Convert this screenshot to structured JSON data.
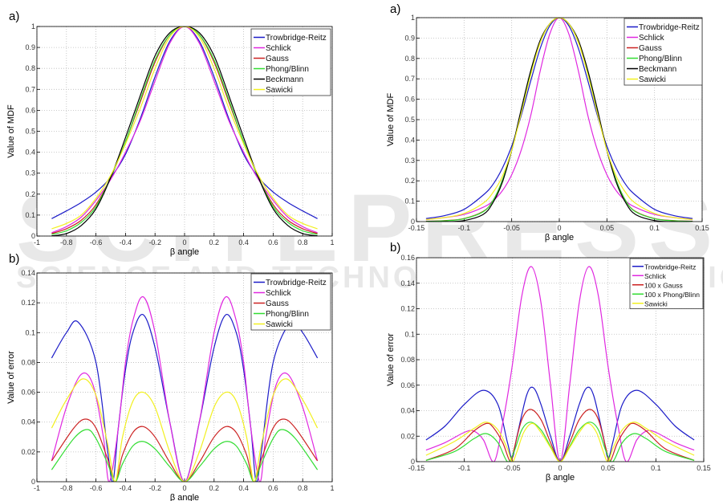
{
  "watermark": {
    "main": "SCITEPRESS",
    "sub": "SCIENCE AND TECHNOLOGY PUBLICATIONS"
  },
  "colors": {
    "Trowbridge-Reitz": "#1c1cc8",
    "Schlick": "#e028e0",
    "Gauss": "#cc2222",
    "Phong/Blinn": "#33dd33",
    "Beckmann": "#000000",
    "Sawicki": "#f2f020"
  },
  "chart_data": [
    {
      "id": "left-a",
      "panel_label": "a)",
      "type": "line",
      "xlabel": "β  angle",
      "ylabel": "Value of MDF",
      "xlim": [
        -1,
        1
      ],
      "ylim": [
        0,
        1
      ],
      "xticks": [
        "-1",
        "-0.8",
        "-0.6",
        "-0.4",
        "-0.2",
        "0",
        "0.2",
        "0.4",
        "0.6",
        "0.8",
        "1"
      ],
      "yticks": [
        "0",
        "0.1",
        "0.2",
        "0.3",
        "0.4",
        "0.5",
        "0.6",
        "0.7",
        "0.8",
        "0.9",
        "1"
      ],
      "grid": true,
      "legend": "top-right",
      "symmetric_about_zero": true,
      "series": [
        {
          "name": "Trowbridge-Reitz",
          "x": [
            0,
            0.1,
            0.2,
            0.3,
            0.4,
            0.5,
            0.6,
            0.7,
            0.8,
            0.9
          ],
          "y": [
            1,
            0.93,
            0.76,
            0.56,
            0.39,
            0.28,
            0.21,
            0.16,
            0.12,
            0.083
          ]
        },
        {
          "name": "Schlick",
          "x": [
            0,
            0.1,
            0.2,
            0.3,
            0.4,
            0.5,
            0.6,
            0.7,
            0.8,
            0.9
          ],
          "y": [
            1,
            0.92,
            0.74,
            0.55,
            0.4,
            0.27,
            0.17,
            0.09,
            0.045,
            0.016
          ]
        },
        {
          "name": "Gauss",
          "x": [
            0,
            0.1,
            0.2,
            0.3,
            0.4,
            0.5,
            0.6,
            0.7,
            0.8,
            0.9
          ],
          "y": [
            1,
            0.96,
            0.83,
            0.64,
            0.45,
            0.28,
            0.15,
            0.075,
            0.035,
            0.012
          ]
        },
        {
          "name": "Phong/Blinn",
          "x": [
            0,
            0.1,
            0.2,
            0.3,
            0.4,
            0.5,
            0.6,
            0.7,
            0.8,
            0.9
          ],
          "y": [
            1,
            0.96,
            0.84,
            0.65,
            0.45,
            0.28,
            0.14,
            0.065,
            0.025,
            0.008
          ]
        },
        {
          "name": "Beckmann",
          "x": [
            0,
            0.1,
            0.2,
            0.3,
            0.4,
            0.5,
            0.6,
            0.7,
            0.8,
            0.9
          ],
          "y": [
            1,
            0.97,
            0.86,
            0.67,
            0.47,
            0.28,
            0.13,
            0.05,
            0.012,
            0.001
          ]
        },
        {
          "name": "Sawicki",
          "x": [
            0,
            0.1,
            0.2,
            0.3,
            0.4,
            0.5,
            0.6,
            0.7,
            0.8,
            0.9
          ],
          "y": [
            1,
            0.95,
            0.8,
            0.61,
            0.44,
            0.29,
            0.18,
            0.1,
            0.06,
            0.035
          ]
        }
      ]
    },
    {
      "id": "left-b",
      "panel_label": "b)",
      "type": "line",
      "xlabel": "β  angle",
      "ylabel": "Value of error",
      "xlim": [
        -1,
        1
      ],
      "ylim": [
        0,
        0.14
      ],
      "xticks": [
        "-1",
        "-0.8",
        "-0.6",
        "-0.4",
        "-0.2",
        "0",
        "0.2",
        "0.4",
        "0.6",
        "0.8",
        "1"
      ],
      "yticks": [
        "0",
        "0.02",
        "0.04",
        "0.06",
        "0.08",
        "0.1",
        "0.12",
        "0.14"
      ],
      "grid": true,
      "legend": "top-right",
      "symmetric_about_zero": true,
      "series": [
        {
          "name": "Trowbridge-Reitz",
          "x": [
            0,
            0.1,
            0.2,
            0.28,
            0.35,
            0.4,
            0.45,
            0.485,
            0.52,
            0.6,
            0.72,
            0.8,
            0.9
          ],
          "y": [
            0,
            0.04,
            0.09,
            0.112,
            0.1,
            0.075,
            0.035,
            0,
            0.02,
            0.08,
            0.107,
            0.1,
            0.083
          ]
        },
        {
          "name": "Schlick",
          "x": [
            0,
            0.1,
            0.2,
            0.28,
            0.35,
            0.4,
            0.45,
            0.51,
            0.55,
            0.62,
            0.7,
            0.8,
            0.9
          ],
          "y": [
            0,
            0.04,
            0.1,
            0.124,
            0.108,
            0.08,
            0.035,
            0,
            0.03,
            0.065,
            0.072,
            0.05,
            0.014
          ]
        },
        {
          "name": "Gauss",
          "x": [
            0,
            0.1,
            0.2,
            0.28,
            0.35,
            0.42,
            0.47,
            0.52,
            0.6,
            0.67,
            0.75,
            0.9
          ],
          "y": [
            0,
            0.013,
            0.03,
            0.037,
            0.033,
            0.018,
            0,
            0.015,
            0.036,
            0.042,
            0.036,
            0.014
          ]
        },
        {
          "name": "Phong/Blinn",
          "x": [
            0,
            0.1,
            0.2,
            0.28,
            0.35,
            0.42,
            0.47,
            0.52,
            0.6,
            0.66,
            0.75,
            0.9
          ],
          "y": [
            0,
            0.01,
            0.022,
            0.027,
            0.024,
            0.012,
            0,
            0.012,
            0.029,
            0.035,
            0.029,
            0.008
          ]
        },
        {
          "name": "Sawicki",
          "x": [
            0,
            0.1,
            0.2,
            0.28,
            0.35,
            0.42,
            0.47,
            0.52,
            0.6,
            0.69,
            0.8,
            0.9
          ],
          "y": [
            0,
            0.02,
            0.05,
            0.06,
            0.054,
            0.03,
            0,
            0.025,
            0.058,
            0.069,
            0.055,
            0.036
          ]
        }
      ]
    },
    {
      "id": "right-a",
      "panel_label": "a)",
      "type": "line",
      "xlabel": "β  angle",
      "ylabel": "Value of MDF",
      "xlim": [
        -0.15,
        0.15
      ],
      "ylim": [
        0,
        1
      ],
      "xticks": [
        "-0.15",
        "-0.1",
        "-0.05",
        "0",
        "0.05",
        "0.1",
        "0.15"
      ],
      "yticks": [
        "0",
        "0.1",
        "0.2",
        "0.3",
        "0.4",
        "0.5",
        "0.6",
        "0.7",
        "0.8",
        "0.9",
        "1"
      ],
      "grid": true,
      "legend": "top-right",
      "symmetric_about_zero": true,
      "series": [
        {
          "name": "Trowbridge-Reitz",
          "x": [
            0,
            0.01,
            0.02,
            0.03,
            0.04,
            0.05,
            0.06,
            0.07,
            0.08,
            0.1,
            0.12,
            0.14
          ],
          "y": [
            1,
            0.96,
            0.85,
            0.69,
            0.52,
            0.37,
            0.26,
            0.18,
            0.13,
            0.06,
            0.03,
            0.015
          ]
        },
        {
          "name": "Schlick",
          "x": [
            0,
            0.01,
            0.02,
            0.03,
            0.04,
            0.05,
            0.06,
            0.07,
            0.08,
            0.1,
            0.12,
            0.14
          ],
          "y": [
            1,
            0.92,
            0.74,
            0.52,
            0.35,
            0.23,
            0.15,
            0.1,
            0.07,
            0.035,
            0.02,
            0.01
          ]
        },
        {
          "name": "Gauss",
          "x": [
            0,
            0.01,
            0.02,
            0.03,
            0.04,
            0.05,
            0.06,
            0.07,
            0.08,
            0.1,
            0.12,
            0.14
          ],
          "y": [
            1,
            0.97,
            0.88,
            0.73,
            0.54,
            0.35,
            0.2,
            0.1,
            0.05,
            0.015,
            0.005,
            0.002
          ]
        },
        {
          "name": "Phong/Blinn",
          "x": [
            0,
            0.01,
            0.02,
            0.03,
            0.04,
            0.05,
            0.06,
            0.07,
            0.08,
            0.1,
            0.12,
            0.14
          ],
          "y": [
            1,
            0.97,
            0.88,
            0.73,
            0.54,
            0.35,
            0.2,
            0.1,
            0.048,
            0.014,
            0.004,
            0.001
          ]
        },
        {
          "name": "Beckmann",
          "x": [
            0,
            0.01,
            0.02,
            0.03,
            0.04,
            0.05,
            0.06,
            0.07,
            0.08,
            0.1,
            0.12,
            0.14
          ],
          "y": [
            1,
            0.97,
            0.89,
            0.74,
            0.55,
            0.35,
            0.19,
            0.09,
            0.035,
            0.005,
            0,
            0
          ]
        },
        {
          "name": "Sawicki",
          "x": [
            0,
            0.01,
            0.02,
            0.03,
            0.04,
            0.05,
            0.06,
            0.07,
            0.08,
            0.1,
            0.12,
            0.14
          ],
          "y": [
            1,
            0.97,
            0.88,
            0.72,
            0.53,
            0.35,
            0.22,
            0.14,
            0.09,
            0.04,
            0.02,
            0.01
          ]
        }
      ]
    },
    {
      "id": "right-b",
      "panel_label": "b)",
      "type": "line",
      "xlabel": "β  angle",
      "ylabel": "Value of error",
      "xlim": [
        -0.15,
        0.15
      ],
      "ylim": [
        0,
        0.16
      ],
      "xticks": [
        "-0.15",
        "-0.1",
        "-0.05",
        "0",
        "0.05",
        "0.1",
        "0.15"
      ],
      "yticks": [
        "0",
        "0.02",
        "0.04",
        "0.06",
        "0.08",
        "0.1",
        "0.12",
        "0.14",
        "0.16"
      ],
      "grid": true,
      "legend": "top-right",
      "symmetric_about_zero": true,
      "series": [
        {
          "name": "Trowbridge-Reitz",
          "colorKey": "Trowbridge-Reitz",
          "x": [
            0,
            0.01,
            0.02,
            0.028,
            0.035,
            0.045,
            0.05,
            0.055,
            0.065,
            0.08,
            0.1,
            0.12,
            0.14
          ],
          "y": [
            0,
            0.02,
            0.045,
            0.058,
            0.052,
            0.02,
            0.003,
            0.015,
            0.045,
            0.056,
            0.045,
            0.028,
            0.017
          ]
        },
        {
          "name": "Schlick",
          "colorKey": "Schlick",
          "x": [
            0,
            0.01,
            0.02,
            0.03,
            0.04,
            0.05,
            0.06,
            0.069,
            0.08,
            0.09,
            0.1,
            0.12,
            0.14
          ],
          "y": [
            0,
            0.06,
            0.125,
            0.153,
            0.13,
            0.075,
            0.03,
            0,
            0.017,
            0.024,
            0.023,
            0.015,
            0.009
          ]
        },
        {
          "name": "100 x Gauss",
          "colorKey": "Gauss",
          "x": [
            0,
            0.01,
            0.02,
            0.031,
            0.04,
            0.048,
            0.052,
            0.06,
            0.07,
            0.077,
            0.09,
            0.11,
            0.14
          ],
          "y": [
            0,
            0.015,
            0.033,
            0.041,
            0.033,
            0.01,
            0,
            0.015,
            0.027,
            0.03,
            0.024,
            0.01,
            0.001
          ]
        },
        {
          "name": "100 x Phong/Blinn",
          "colorKey": "Phong/Blinn",
          "x": [
            0,
            0.01,
            0.02,
            0.031,
            0.04,
            0.048,
            0.055,
            0.065,
            0.077,
            0.09,
            0.11,
            0.14
          ],
          "y": [
            0,
            0.012,
            0.025,
            0.031,
            0.025,
            0.008,
            0,
            0.015,
            0.022,
            0.018,
            0.008,
            0.001
          ]
        },
        {
          "name": "Sawicki",
          "colorKey": "Sawicki",
          "x": [
            0,
            0.01,
            0.02,
            0.029,
            0.038,
            0.045,
            0.05,
            0.055,
            0.065,
            0.077,
            0.09,
            0.11,
            0.14
          ],
          "y": [
            0,
            0.011,
            0.023,
            0.03,
            0.023,
            0.008,
            0,
            0.01,
            0.025,
            0.031,
            0.026,
            0.016,
            0.005
          ]
        }
      ]
    }
  ]
}
